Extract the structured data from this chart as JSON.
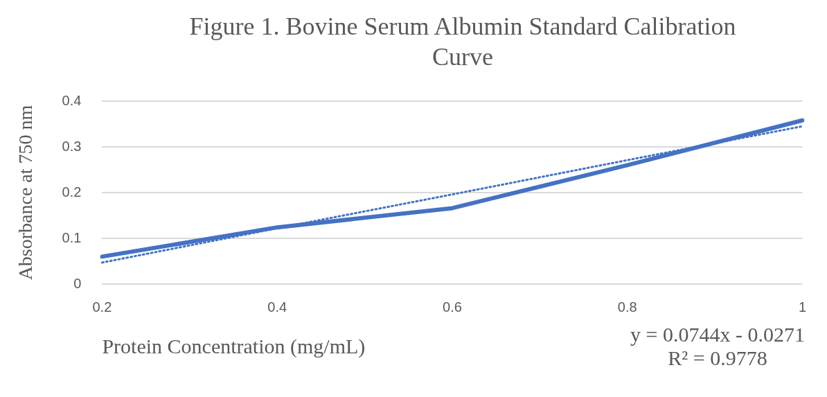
{
  "chart_data": {
    "type": "line",
    "title": "Figure 1. Bovine Serum Albumin Standard Calibration Curve",
    "xlabel": "Protein Concentration (mg/mL)",
    "ylabel": "Absorbance at 750 nm",
    "categories": [
      "0.2",
      "0.4",
      "0.6",
      "0.8",
      "1"
    ],
    "series": [
      {
        "color": "#4472c4",
        "values": [
          0.06,
          0.124,
          0.166,
          0.26,
          0.358
        ],
        "line_style": "solid"
      },
      {
        "type": "line",
        "color": "#4472c4",
        "values": [
          0.047,
          0.122,
          0.196,
          0.271,
          0.345
        ],
        "line_style": "dotted"
      }
    ],
    "ylim": [
      0,
      0.4
    ],
    "yticks": [
      0,
      0.1,
      0.2,
      0.3,
      0.4
    ],
    "grid": "y",
    "legend": false,
    "marker": "none",
    "annotations": [
      "y = 0.0744x - 0.0271",
      "R² = 0.9778"
    ]
  }
}
